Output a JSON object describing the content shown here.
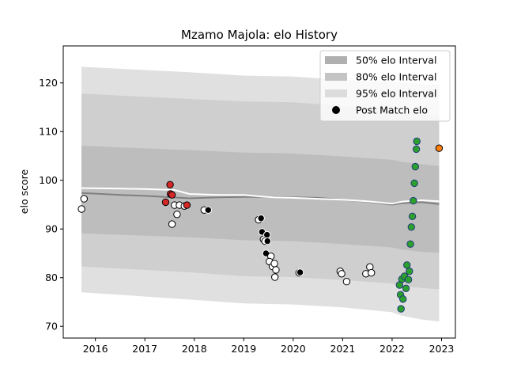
{
  "chart_data": {
    "type": "scatter",
    "title": "Mzamo Majola: elo History",
    "xlabel": "",
    "ylabel": "elo score",
    "xlim": [
      2015.35,
      2023.28
    ],
    "ylim": [
      67.6,
      127.6
    ],
    "x_ticks": [
      2016,
      2017,
      2018,
      2019,
      2020,
      2021,
      2022,
      2023
    ],
    "x_tick_labels": [
      "2016",
      "2017",
      "2018",
      "2019",
      "2020",
      "2021",
      "2022",
      "2023"
    ],
    "y_ticks": [
      70,
      80,
      90,
      100,
      110,
      120
    ],
    "y_tick_labels": [
      "70",
      "80",
      "90",
      "100",
      "110",
      "120"
    ],
    "legend_position": "top-right",
    "legend": [
      {
        "label": "50% elo Interval",
        "color": "#b0b0b0",
        "kind": "patch"
      },
      {
        "label": "80% elo Interval",
        "color": "#c4c4c4",
        "kind": "patch"
      },
      {
        "label": "95% elo Interval",
        "color": "#dcdcdc",
        "kind": "patch"
      },
      {
        "label": "Post Match elo",
        "color": "#000000",
        "kind": "marker"
      }
    ],
    "bands": [
      {
        "name": "95% elo Interval",
        "color": "#e0e0e0",
        "x": [
          2015.72,
          2017.9,
          2019.0,
          2020.0,
          2021.0,
          2022.0,
          2022.2,
          2022.6,
          2022.95
        ],
        "upper": [
          123.3,
          122.2,
          121.5,
          121.3,
          120.6,
          120.2,
          120.0,
          119.8,
          119.7
        ],
        "lower": [
          77.0,
          75.5,
          74.7,
          74.5,
          73.9,
          72.9,
          72.2,
          71.4,
          71.0
        ]
      },
      {
        "name": "80% elo Interval",
        "color": "#cfcfcf",
        "x": [
          2015.72,
          2017.9,
          2019.0,
          2020.0,
          2021.0,
          2022.0,
          2022.2,
          2022.6,
          2022.95
        ],
        "upper": [
          117.8,
          116.7,
          116.2,
          116.0,
          115.3,
          114.4,
          114.0,
          113.4,
          113.1
        ],
        "lower": [
          82.3,
          81.1,
          80.3,
          80.1,
          79.5,
          78.8,
          78.3,
          77.9,
          77.6
        ]
      },
      {
        "name": "50% elo Interval",
        "color": "#bdbdbd",
        "x": [
          2015.72,
          2017.9,
          2019.0,
          2020.0,
          2021.0,
          2022.0,
          2022.2,
          2022.6,
          2022.95
        ],
        "upper": [
          107.1,
          106.2,
          105.7,
          105.5,
          104.9,
          104.2,
          103.8,
          103.3,
          102.9
        ],
        "lower": [
          89.1,
          88.3,
          87.7,
          87.5,
          86.9,
          86.2,
          85.8,
          85.3,
          85.1
        ]
      }
    ],
    "lines": [
      {
        "name": "mean",
        "color": "#808080",
        "x": [
          2015.72,
          2016.5,
          2017.0,
          2017.9,
          2018.5,
          2019.0,
          2019.5,
          2020.0,
          2020.5,
          2021.0,
          2021.5,
          2022.0,
          2022.2,
          2022.6,
          2022.95
        ],
        "y": [
          97.4,
          97.0,
          96.8,
          96.3,
          96.5,
          96.6,
          96.6,
          96.5,
          96.4,
          96.0,
          95.6,
          95.0,
          95.3,
          95.5,
          95.1
        ]
      },
      {
        "name": "posterior",
        "color": "#ffffff",
        "x": [
          2015.72,
          2016.5,
          2017.0,
          2017.6,
          2017.9,
          2018.5,
          2019.0,
          2019.3,
          2019.6,
          2020.0,
          2020.5,
          2021.0,
          2021.5,
          2022.0,
          2022.2,
          2022.4,
          2022.6,
          2022.95
        ],
        "y": [
          98.4,
          98.3,
          98.2,
          98.0,
          97.2,
          97.0,
          97.0,
          96.7,
          96.5,
          96.4,
          96.2,
          96.0,
          95.7,
          95.2,
          95.6,
          95.8,
          95.9,
          95.7
        ]
      }
    ],
    "points": [
      {
        "x": 2015.72,
        "y": 94.1,
        "fill": "#ffffff",
        "edge": "#000000"
      },
      {
        "x": 2015.77,
        "y": 96.2,
        "fill": "#ffffff",
        "edge": "#000000"
      },
      {
        "x": 2017.42,
        "y": 95.5,
        "fill": "#d62728",
        "edge": "#000000"
      },
      {
        "x": 2017.51,
        "y": 99.1,
        "fill": "#d62728",
        "edge": "#000000"
      },
      {
        "x": 2017.52,
        "y": 97.2,
        "fill": "#d62728",
        "edge": "#000000"
      },
      {
        "x": 2017.55,
        "y": 97.0,
        "fill": "#d62728",
        "edge": "#000000"
      },
      {
        "x": 2017.55,
        "y": 91.0,
        "fill": "#ffffff",
        "edge": "#000000"
      },
      {
        "x": 2017.6,
        "y": 94.9,
        "fill": "#ffffff",
        "edge": "#000000"
      },
      {
        "x": 2017.65,
        "y": 93.0,
        "fill": "#ffffff",
        "edge": "#000000"
      },
      {
        "x": 2017.7,
        "y": 94.9,
        "fill": "#ffffff",
        "edge": "#000000"
      },
      {
        "x": 2017.8,
        "y": 94.7,
        "fill": "#ffffff",
        "edge": "#000000"
      },
      {
        "x": 2017.85,
        "y": 94.9,
        "fill": "#d62728",
        "edge": "#000000"
      },
      {
        "x": 2018.2,
        "y": 93.9,
        "fill": "#ffffff",
        "edge": "#000000"
      },
      {
        "x": 2018.28,
        "y": 93.9,
        "fill": "#000000",
        "edge": "#ffffff"
      },
      {
        "x": 2019.3,
        "y": 91.9,
        "fill": "#ffffff",
        "edge": "#000000"
      },
      {
        "x": 2019.35,
        "y": 92.2,
        "fill": "#000000",
        "edge": "#ffffff"
      },
      {
        "x": 2019.37,
        "y": 89.4,
        "fill": "#000000",
        "edge": "#ffffff"
      },
      {
        "x": 2019.4,
        "y": 87.9,
        "fill": "#ffffff",
        "edge": "#000000"
      },
      {
        "x": 2019.43,
        "y": 87.5,
        "fill": "#ffffff",
        "edge": "#000000"
      },
      {
        "x": 2019.47,
        "y": 88.8,
        "fill": "#000000",
        "edge": "#ffffff"
      },
      {
        "x": 2019.48,
        "y": 87.5,
        "fill": "#000000",
        "edge": "#ffffff"
      },
      {
        "x": 2019.45,
        "y": 85.0,
        "fill": "#000000",
        "edge": "#ffffff"
      },
      {
        "x": 2019.55,
        "y": 84.4,
        "fill": "#ffffff",
        "edge": "#000000"
      },
      {
        "x": 2019.52,
        "y": 83.3,
        "fill": "#ffffff",
        "edge": "#000000"
      },
      {
        "x": 2019.58,
        "y": 82.3,
        "fill": "#ffffff",
        "edge": "#000000"
      },
      {
        "x": 2019.62,
        "y": 82.9,
        "fill": "#ffffff",
        "edge": "#000000"
      },
      {
        "x": 2019.65,
        "y": 81.6,
        "fill": "#ffffff",
        "edge": "#000000"
      },
      {
        "x": 2019.63,
        "y": 80.1,
        "fill": "#ffffff",
        "edge": "#000000"
      },
      {
        "x": 2020.12,
        "y": 81.0,
        "fill": "#ffffff",
        "edge": "#000000"
      },
      {
        "x": 2020.14,
        "y": 81.1,
        "fill": "#000000",
        "edge": "#ffffff"
      },
      {
        "x": 2020.95,
        "y": 81.3,
        "fill": "#ffffff",
        "edge": "#000000"
      },
      {
        "x": 2020.98,
        "y": 80.8,
        "fill": "#ffffff",
        "edge": "#000000"
      },
      {
        "x": 2021.08,
        "y": 79.2,
        "fill": "#ffffff",
        "edge": "#000000"
      },
      {
        "x": 2021.47,
        "y": 80.8,
        "fill": "#ffffff",
        "edge": "#000000"
      },
      {
        "x": 2021.55,
        "y": 82.2,
        "fill": "#ffffff",
        "edge": "#000000"
      },
      {
        "x": 2021.58,
        "y": 81.0,
        "fill": "#ffffff",
        "edge": "#000000"
      },
      {
        "x": 2022.15,
        "y": 78.5,
        "fill": "#2ca02c",
        "edge": "#1f3b7a"
      },
      {
        "x": 2022.17,
        "y": 76.5,
        "fill": "#2ca02c",
        "edge": "#1f3b7a"
      },
      {
        "x": 2022.18,
        "y": 73.6,
        "fill": "#2ca02c",
        "edge": "#1f3b7a"
      },
      {
        "x": 2022.2,
        "y": 79.7,
        "fill": "#2ca02c",
        "edge": "#1f3b7a"
      },
      {
        "x": 2022.22,
        "y": 75.6,
        "fill": "#2ca02c",
        "edge": "#1f3b7a"
      },
      {
        "x": 2022.25,
        "y": 80.3,
        "fill": "#2ca02c",
        "edge": "#1f3b7a"
      },
      {
        "x": 2022.28,
        "y": 77.8,
        "fill": "#2ca02c",
        "edge": "#1f3b7a"
      },
      {
        "x": 2022.3,
        "y": 82.6,
        "fill": "#2ca02c",
        "edge": "#1f3b7a"
      },
      {
        "x": 2022.33,
        "y": 79.6,
        "fill": "#2ca02c",
        "edge": "#1f3b7a"
      },
      {
        "x": 2022.35,
        "y": 81.3,
        "fill": "#2ca02c",
        "edge": "#1f3b7a"
      },
      {
        "x": 2022.37,
        "y": 86.9,
        "fill": "#2ca02c",
        "edge": "#1f3b7a"
      },
      {
        "x": 2022.39,
        "y": 90.4,
        "fill": "#2ca02c",
        "edge": "#1f3b7a"
      },
      {
        "x": 2022.41,
        "y": 92.6,
        "fill": "#2ca02c",
        "edge": "#1f3b7a"
      },
      {
        "x": 2022.43,
        "y": 95.8,
        "fill": "#2ca02c",
        "edge": "#1f3b7a"
      },
      {
        "x": 2022.45,
        "y": 99.4,
        "fill": "#2ca02c",
        "edge": "#1f3b7a"
      },
      {
        "x": 2022.47,
        "y": 102.8,
        "fill": "#2ca02c",
        "edge": "#1f3b7a"
      },
      {
        "x": 2022.49,
        "y": 106.4,
        "fill": "#2ca02c",
        "edge": "#1f3b7a"
      },
      {
        "x": 2022.5,
        "y": 108.0,
        "fill": "#2ca02c",
        "edge": "#1f3b7a"
      },
      {
        "x": 2022.95,
        "y": 106.6,
        "fill": "#ff7f0e",
        "edge": "#000000"
      }
    ]
  }
}
